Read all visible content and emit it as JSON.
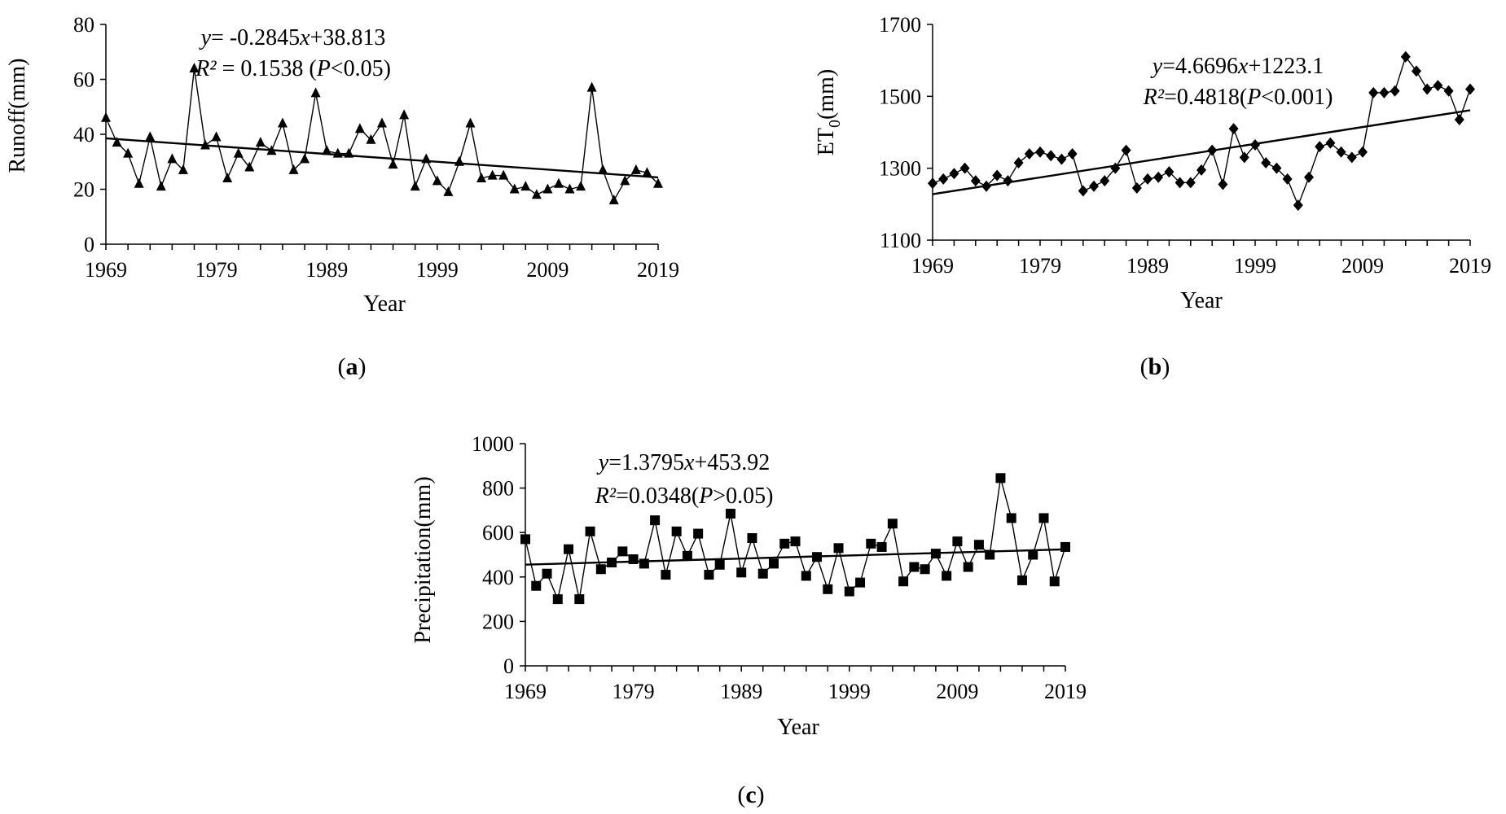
{
  "chart_data": [
    {
      "id": "a",
      "type": "line",
      "panel_label": "a",
      "title": "",
      "xlabel": "Year",
      "ylabel": "Runoff(mm)",
      "xlim": [
        1969,
        2019
      ],
      "ylim": [
        0,
        80
      ],
      "xticks": [
        1969,
        1979,
        1989,
        1999,
        2009,
        2019
      ],
      "yticks": [
        0,
        20,
        40,
        60,
        80
      ],
      "marker": "triangle",
      "grid": false,
      "equation": {
        "italic_var": "y",
        "eq_part": "= -0.2845",
        "x_var": "x",
        "tail": "+38.813"
      },
      "r2": {
        "label": "R²",
        "value_text": " = 0.1538 (",
        "p": "P",
        "p_tail": "<0.05)"
      },
      "trend": {
        "slope": -0.2845,
        "intercept": 38.813
      },
      "series": [
        {
          "name": "Runoff",
          "x": [
            1969,
            1970,
            1971,
            1972,
            1973,
            1974,
            1975,
            1976,
            1977,
            1978,
            1979,
            1980,
            1981,
            1982,
            1983,
            1984,
            1985,
            1986,
            1987,
            1988,
            1989,
            1990,
            1991,
            1992,
            1993,
            1994,
            1995,
            1996,
            1997,
            1998,
            1999,
            2000,
            2001,
            2002,
            2003,
            2004,
            2005,
            2006,
            2007,
            2008,
            2009,
            2010,
            2011,
            2012,
            2013,
            2014,
            2015,
            2016,
            2017,
            2018,
            2019
          ],
          "values": [
            46,
            37,
            33,
            22,
            39,
            21,
            31,
            27,
            64,
            36,
            39,
            24,
            33,
            28,
            37,
            34,
            44,
            27,
            31,
            55,
            34,
            33,
            33,
            42,
            38,
            44,
            29,
            47,
            21,
            31,
            23,
            19,
            30,
            44,
            24,
            25,
            25,
            20,
            21,
            18,
            20,
            22,
            20,
            21,
            57,
            27,
            16,
            23,
            27,
            26,
            22
          ]
        }
      ]
    },
    {
      "id": "b",
      "type": "line",
      "panel_label": "b",
      "title": "",
      "xlabel": "Year",
      "ylabel": "ET",
      "ylabel_sub": "0",
      "ylabel_tail": "(mm)",
      "xlim": [
        1969,
        2019
      ],
      "ylim": [
        1100,
        1700
      ],
      "xticks": [
        1969,
        1979,
        1989,
        1999,
        2009,
        2019
      ],
      "yticks": [
        1100,
        1300,
        1500,
        1700
      ],
      "marker": "diamond",
      "grid": false,
      "equation": {
        "italic_var": "y",
        "eq_part": "=4.6696",
        "x_var": "x",
        "tail": "+1223.1"
      },
      "r2": {
        "label": "R²",
        "value_text": "=0.4818(",
        "p": "P",
        "p_tail": "<0.001)"
      },
      "trend": {
        "slope": 4.6696,
        "intercept": 1223.1
      },
      "series": [
        {
          "name": "ET0",
          "x": [
            1969,
            1970,
            1971,
            1972,
            1973,
            1974,
            1975,
            1976,
            1977,
            1978,
            1979,
            1980,
            1981,
            1982,
            1983,
            1984,
            1985,
            1986,
            1987,
            1988,
            1989,
            1990,
            1991,
            1992,
            1993,
            1994,
            1995,
            1996,
            1997,
            1998,
            1999,
            2000,
            2001,
            2002,
            2003,
            2004,
            2005,
            2006,
            2007,
            2008,
            2009,
            2010,
            2011,
            2012,
            2013,
            2014,
            2015,
            2016,
            2017,
            2018,
            2019
          ],
          "values": [
            1258,
            1270,
            1285,
            1300,
            1265,
            1250,
            1280,
            1265,
            1315,
            1340,
            1345,
            1335,
            1325,
            1340,
            1237,
            1250,
            1265,
            1300,
            1350,
            1245,
            1270,
            1275,
            1290,
            1260,
            1260,
            1295,
            1350,
            1255,
            1410,
            1330,
            1365,
            1315,
            1300,
            1270,
            1197,
            1275,
            1360,
            1370,
            1345,
            1330,
            1345,
            1510,
            1510,
            1515,
            1610,
            1570,
            1520,
            1530,
            1515,
            1435,
            1520
          ]
        }
      ]
    },
    {
      "id": "c",
      "type": "line",
      "panel_label": "c",
      "title": "",
      "xlabel": "Year",
      "ylabel": "Precipitation(mm)",
      "xlim": [
        1969,
        2019
      ],
      "ylim": [
        0,
        1000
      ],
      "xticks": [
        1969,
        1979,
        1989,
        1999,
        2009,
        2019
      ],
      "yticks": [
        0,
        200,
        400,
        600,
        800,
        1000
      ],
      "marker": "square",
      "grid": false,
      "equation": {
        "italic_var": "y",
        "eq_part": "=1.3795",
        "x_var": "x",
        "tail": "+453.92"
      },
      "r2": {
        "label": "R²",
        "value_text": "=0.0348(",
        "p": "P",
        "p_tail": ">0.05)"
      },
      "trend": {
        "slope": 1.3795,
        "intercept": 453.92
      },
      "series": [
        {
          "name": "Precipitation",
          "x": [
            1969,
            1970,
            1971,
            1972,
            1973,
            1974,
            1975,
            1976,
            1977,
            1978,
            1979,
            1980,
            1981,
            1982,
            1983,
            1984,
            1985,
            1986,
            1987,
            1988,
            1989,
            1990,
            1991,
            1992,
            1993,
            1994,
            1995,
            1996,
            1997,
            1998,
            1999,
            2000,
            2001,
            2002,
            2003,
            2004,
            2005,
            2006,
            2007,
            2008,
            2009,
            2010,
            2011,
            2012,
            2013,
            2014,
            2015,
            2016,
            2017,
            2018,
            2019
          ],
          "values": [
            570,
            360,
            415,
            300,
            525,
            300,
            605,
            435,
            465,
            515,
            480,
            460,
            655,
            410,
            605,
            495,
            595,
            410,
            455,
            685,
            420,
            575,
            415,
            460,
            550,
            560,
            405,
            490,
            345,
            530,
            335,
            375,
            550,
            535,
            640,
            380,
            445,
            435,
            505,
            405,
            560,
            445,
            545,
            500,
            845,
            665,
            385,
            500,
            665,
            380,
            535
          ]
        }
      ]
    }
  ]
}
